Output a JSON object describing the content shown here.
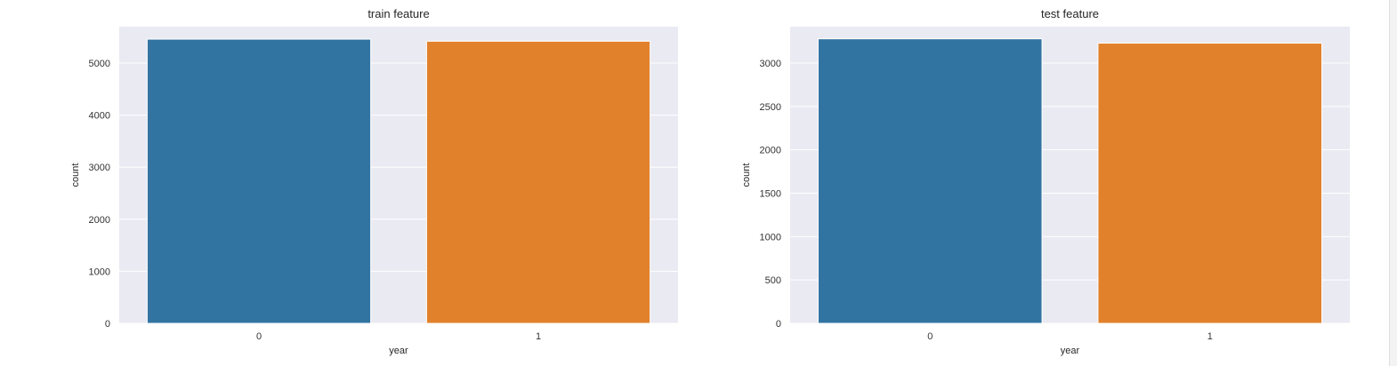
{
  "chart_data": [
    {
      "type": "bar",
      "title": "train feature",
      "xlabel": "year",
      "ylabel": "count",
      "categories": [
        "0",
        "1"
      ],
      "values": [
        5460,
        5420
      ],
      "colors": [
        "#3274a1",
        "#e1812c"
      ],
      "ylim": [
        0,
        5700
      ],
      "yticks": [
        0,
        1000,
        2000,
        3000,
        4000,
        5000
      ],
      "grid": true,
      "background": "#eaeaf2"
    },
    {
      "type": "bar",
      "title": "test feature",
      "xlabel": "year",
      "ylabel": "count",
      "categories": [
        "0",
        "1"
      ],
      "values": [
        3280,
        3230
      ],
      "colors": [
        "#3274a1",
        "#e1812c"
      ],
      "ylim": [
        0,
        3420
      ],
      "yticks": [
        0,
        500,
        1000,
        1500,
        2000,
        2500,
        3000
      ],
      "grid": true,
      "background": "#eaeaf2"
    }
  ]
}
